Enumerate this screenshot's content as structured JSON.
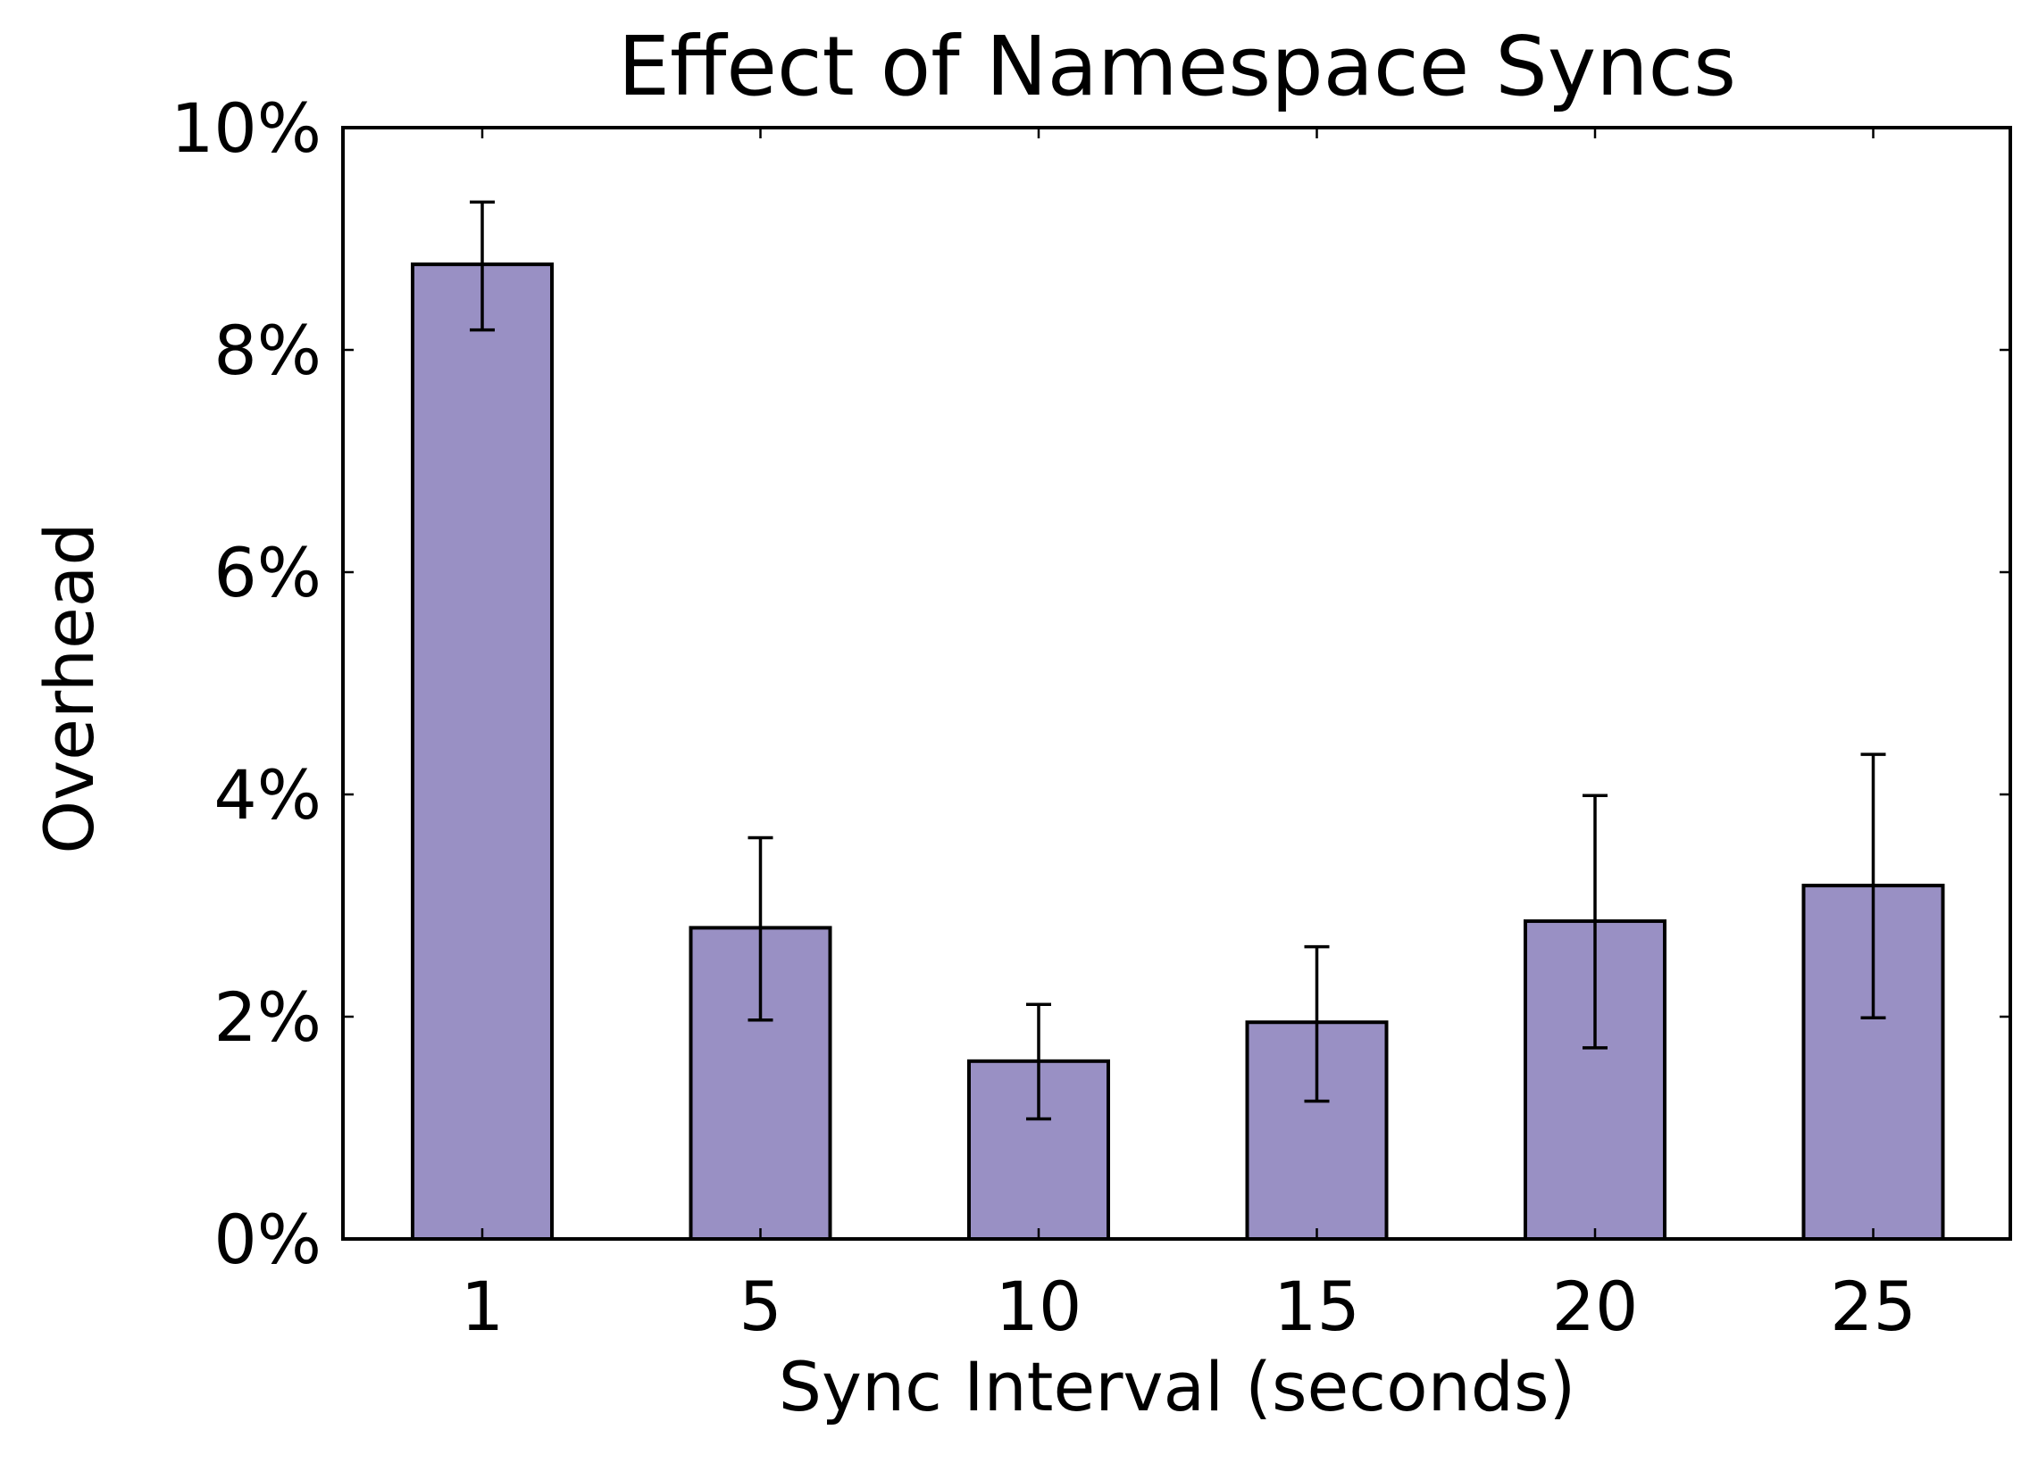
{
  "chart_data": {
    "type": "bar",
    "title": "Effect of Namespace Syncs",
    "xlabel": "Sync Interval (seconds)",
    "ylabel": "Overhead",
    "categories": [
      "1",
      "5",
      "10",
      "15",
      "20",
      "25"
    ],
    "values": [
      8.77,
      2.8,
      1.6,
      1.95,
      2.86,
      3.18
    ],
    "error_bars": [
      [
        8.18,
        9.33
      ],
      [
        1.97,
        3.61
      ],
      [
        1.08,
        2.11
      ],
      [
        1.24,
        2.63
      ],
      [
        1.72,
        3.99
      ],
      [
        1.99,
        4.36
      ]
    ],
    "ylim": [
      0,
      10
    ],
    "y_ticks": [
      0,
      2,
      4,
      6,
      8,
      10
    ],
    "y_tick_labels": [
      "0%",
      "2%",
      "4%",
      "6%",
      "8%",
      "10%"
    ],
    "grid": false,
    "colors": {
      "bar_fill": "#9990c4",
      "bar_edge": "#000000",
      "axis": "#000000",
      "error_bar": "#000000"
    }
  }
}
